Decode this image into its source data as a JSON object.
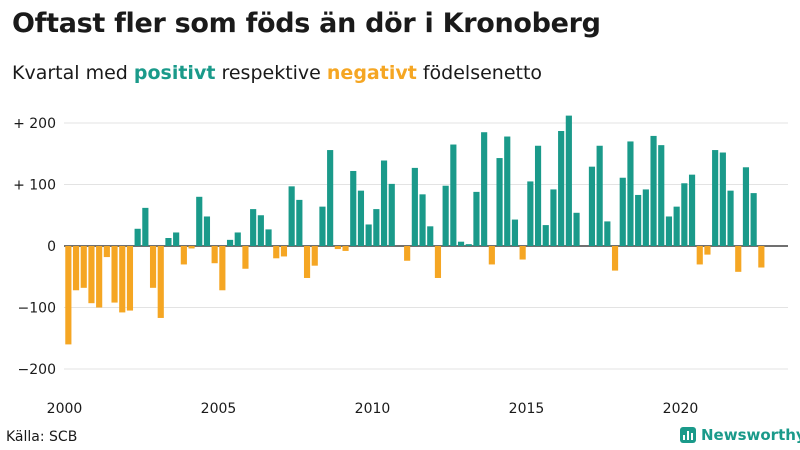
{
  "header": {
    "title": "Oftast fler som föds än dör i Kronoberg",
    "subtitle_pre": "Kvartal med ",
    "subtitle_pos": "positivt",
    "subtitle_mid": " respektive ",
    "subtitle_neg": "negativt",
    "subtitle_post": " födelsenetto"
  },
  "footer": {
    "source": "Källa: SCB",
    "brand": "Newsworthy",
    "brand_icon": "bar-chart-icon"
  },
  "colors": {
    "positive": "#1a9a8a",
    "negative": "#f5a623",
    "grid": "#e3e3e3",
    "baseline": "#1a1a1a"
  },
  "chart_data": {
    "type": "bar",
    "title": "Oftast fler som föds än dör i Kronoberg",
    "xlabel": "",
    "ylabel": "",
    "x_start_year": 2000,
    "periods_per_year": 4,
    "ylim": [
      -220,
      220
    ],
    "y_ticks": [
      200,
      100,
      0,
      -100,
      -200
    ],
    "y_tick_labels": [
      "+ 200",
      "+ 100",
      "0",
      "−100",
      "−200"
    ],
    "x_ticks": [
      2000,
      2005,
      2010,
      2015,
      2020
    ],
    "x_tick_labels": [
      "2000",
      "2005",
      "2010",
      "2015",
      "2020"
    ],
    "grid": true,
    "values": [
      -160,
      -72,
      -68,
      -93,
      -100,
      -18,
      -92,
      -108,
      -105,
      28,
      62,
      -68,
      -117,
      13,
      22,
      -30,
      -4,
      80,
      48,
      -28,
      -72,
      10,
      22,
      -37,
      60,
      50,
      27,
      -20,
      -17,
      97,
      75,
      -52,
      -32,
      64,
      156,
      -5,
      -8,
      122,
      90,
      35,
      60,
      139,
      101,
      0,
      -24,
      127,
      84,
      32,
      -52,
      98,
      165,
      7,
      3,
      88,
      185,
      -30,
      143,
      178,
      43,
      -22,
      105,
      163,
      34,
      92,
      187,
      212,
      54,
      0,
      129,
      163,
      40,
      -40,
      111,
      170,
      83,
      92,
      179,
      164,
      48,
      64,
      102,
      116,
      -30,
      -14,
      156,
      152,
      90,
      -42,
      128,
      86,
      -35
    ]
  }
}
